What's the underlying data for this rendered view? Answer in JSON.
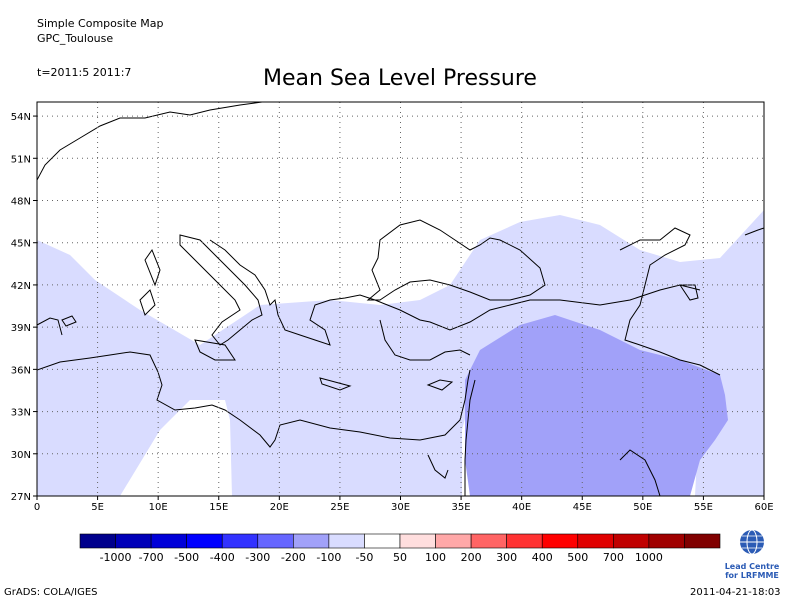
{
  "header": {
    "line1": "Simple Composite Map",
    "line2": "GPC_Toulouse",
    "time": "t=2011:5 2011:7"
  },
  "title": "Mean Sea Level Pressure",
  "map": {
    "lon_range": [
      0,
      60
    ],
    "lat_range": [
      27,
      55
    ],
    "lon_ticks": [
      "0",
      "5E",
      "10E",
      "15E",
      "20E",
      "25E",
      "30E",
      "35E",
      "40E",
      "45E",
      "50E",
      "55E",
      "60E"
    ],
    "lat_ticks": [
      "27N",
      "30N",
      "33N",
      "36N",
      "39N",
      "42N",
      "45N",
      "48N",
      "51N",
      "54N"
    ],
    "grid": "dotted",
    "shading": {
      "light_band_color": "#d9dcff",
      "medium_region_color": "#a1a1f9",
      "white_region_color": "#ffffff"
    }
  },
  "colorbar": {
    "colors": [
      "#00008c",
      "#0000b8",
      "#0000d8",
      "#0000ff",
      "#3232ff",
      "#6666ff",
      "#a1a1f9",
      "#d9dcff",
      "#ffffff",
      "#ffdede",
      "#ffa8a8",
      "#ff6464",
      "#ff3232",
      "#ff0000",
      "#e00000",
      "#c00000",
      "#a00000",
      "#800000"
    ],
    "labels": [
      "-1000",
      "-700",
      "-500",
      "-400",
      "-300",
      "-200",
      "-100",
      "-50",
      "50",
      "100",
      "200",
      "300",
      "400",
      "500",
      "700",
      "1000"
    ]
  },
  "logo": {
    "icon": "wmo-globe-icon",
    "line1": "Lead Centre",
    "line2": "for LRFMME"
  },
  "footer": {
    "left": "GrADS: COLA/IGES",
    "right": "2011-04-21-18:03"
  }
}
